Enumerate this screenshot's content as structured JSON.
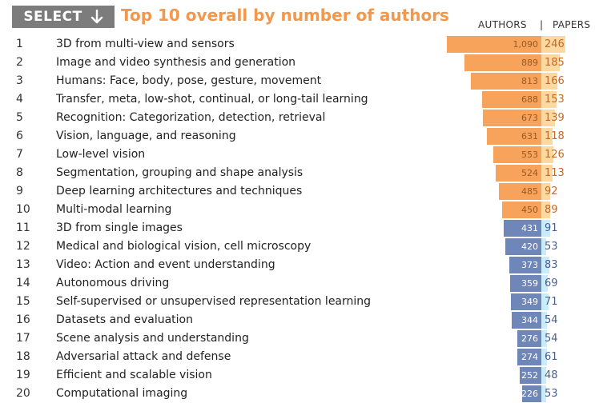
{
  "header": {
    "select_label": "SELECT",
    "title": "Top 10 overall by number of authors",
    "col_authors": "AUTHORS",
    "col_separator": "|",
    "col_papers": "PAPERS"
  },
  "colors": {
    "top_author_bar": "#f7a35c",
    "top_paper_bar": "#fcd9a0",
    "top_author_text": "#9a5a20",
    "top_paper_text": "#c2692a",
    "other_author_bar": "#6f86b8",
    "other_paper_bar": "#c8ecfb",
    "other_author_text": "#ffffff",
    "other_paper_text": "#4a5f8c",
    "title": "#f2974b",
    "select_bg": "#7c7c7c"
  },
  "chart_data": {
    "type": "bar",
    "highlight_top_n": 10,
    "categories": [
      "3D from multi-view and sensors",
      "Image and video synthesis and generation",
      "Humans: Face, body, pose, gesture, movement",
      "Transfer, meta, low-shot, continual, or long-tail learning",
      "Recognition: Categorization, detection, retrieval",
      "Vision, language, and reasoning",
      "Low-level vision",
      "Segmentation, grouping and shape analysis",
      "Deep learning architectures and techniques",
      "Multi-modal learning",
      "3D from single images",
      "Medical and biological vision, cell microscopy",
      "Video: Action and event understanding",
      "Autonomous driving",
      "Self-supervised or unsupervised representation learning",
      "Datasets and evaluation",
      "Scene analysis and understanding",
      "Adversarial attack and defense",
      "Efficient and scalable vision",
      "Computational imaging"
    ],
    "ranks": [
      "1",
      "2",
      "3",
      "4",
      "5",
      "6",
      "7",
      "8",
      "9",
      "10",
      "11",
      "12",
      "13",
      "14",
      "15",
      "16",
      "17",
      "18",
      "19",
      "20"
    ],
    "series": [
      {
        "name": "AUTHORS",
        "values": [
          1090,
          889,
          813,
          688,
          673,
          631,
          553,
          524,
          485,
          450,
          431,
          420,
          373,
          359,
          349,
          344,
          276,
          274,
          252,
          226
        ],
        "labels": [
          "1,090",
          "889",
          "813",
          "688",
          "673",
          "631",
          "553",
          "524",
          "485",
          "450",
          "431",
          "420",
          "373",
          "359",
          "349",
          "344",
          "276",
          "274",
          "252",
          "226"
        ]
      },
      {
        "name": "PAPERS",
        "values": [
          246,
          185,
          166,
          153,
          139,
          118,
          126,
          113,
          92,
          89,
          91,
          53,
          83,
          69,
          71,
          54,
          54,
          61,
          48,
          53
        ],
        "labels": [
          "246",
          "185",
          "166",
          "153",
          "139",
          "118",
          "126",
          "113",
          "92",
          "89",
          "91",
          "53",
          "83",
          "69",
          "71",
          "54",
          "54",
          "61",
          "48",
          "53"
        ]
      }
    ]
  }
}
